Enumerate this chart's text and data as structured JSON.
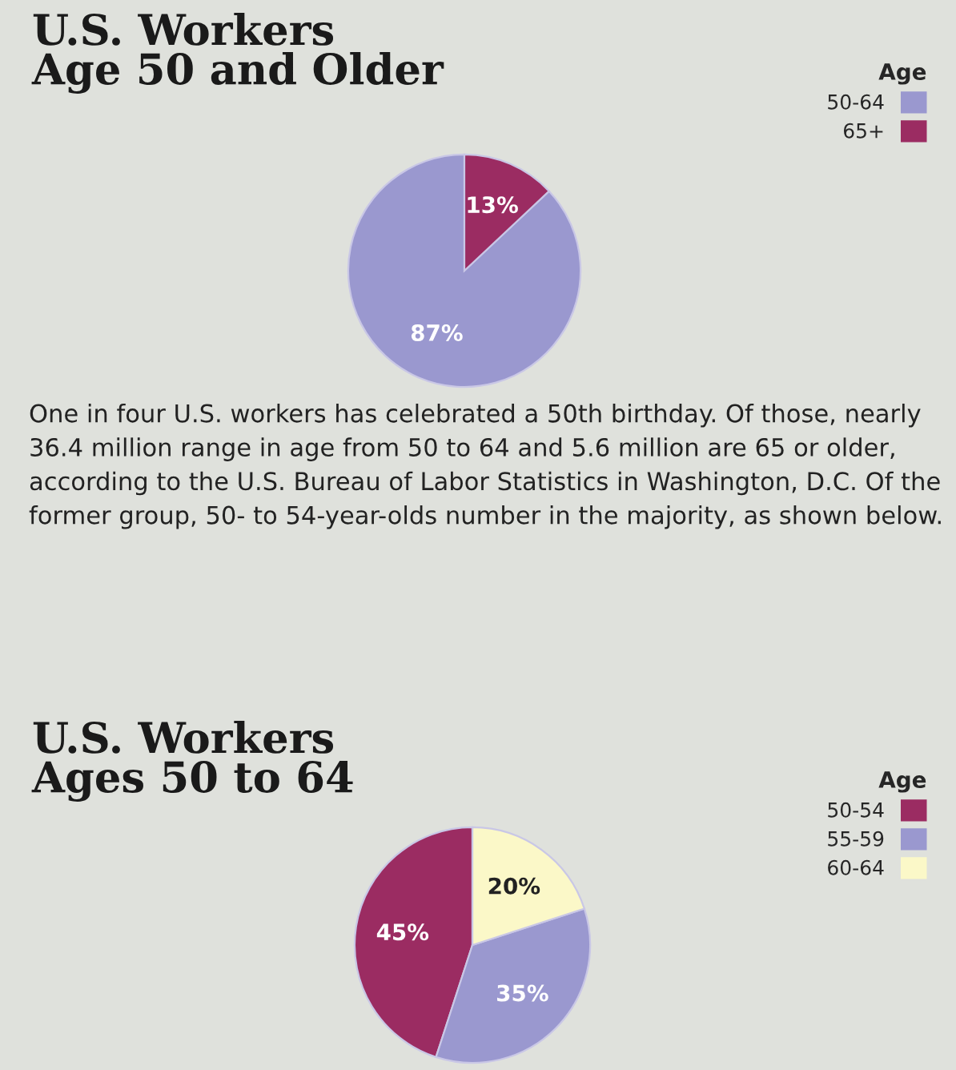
{
  "chart_data": [
    {
      "type": "pie",
      "title": "U.S. Workers\nAge 50 and Older",
      "legend_title": "Age",
      "legend": "top right",
      "categories": [
        "50-64",
        "65+"
      ],
      "values": [
        87,
        13
      ],
      "colors": [
        "#9a98cf",
        "#9b2c62"
      ],
      "value_labels": [
        "87%",
        "13%"
      ],
      "annotations": [
        "One in four U.S. workers has celebrated a 50th birthday. Of those, nearly 36.4 million range in age from 50 to 64 and 5.6 million are 65 or older, according to the U.S. Bureau of Labor Statistics in Washington, D.C. Of the former group, 50- to 54-year-olds number in the majority, as shown below."
      ]
    },
    {
      "type": "pie",
      "title": "U.S. Workers\nAges 50 to 64",
      "legend_title": "Age",
      "legend": "top right",
      "categories": [
        "50-54",
        "55-59",
        "60-64"
      ],
      "values": [
        45,
        35,
        20
      ],
      "colors": [
        "#9b2c62",
        "#9a98cf",
        "#fbf8c8"
      ],
      "value_labels": [
        "45%",
        "35%",
        "20%"
      ]
    }
  ]
}
